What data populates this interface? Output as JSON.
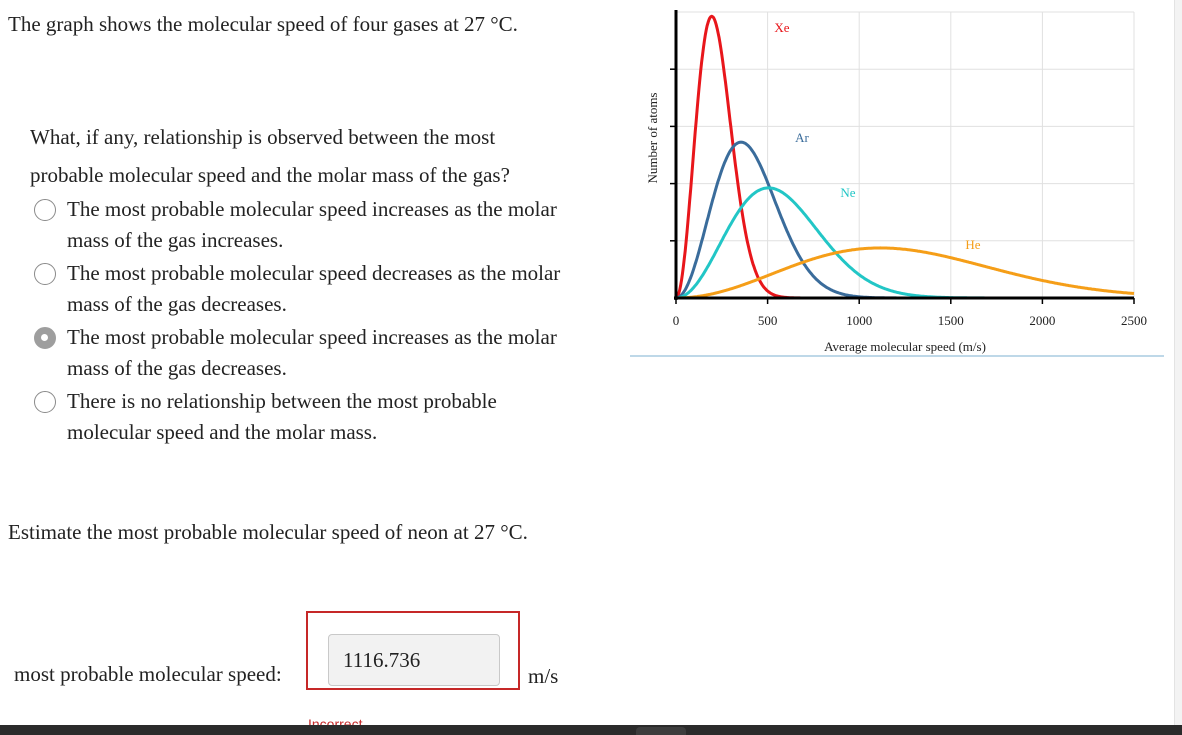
{
  "intro_text": "The graph shows the molecular speed of four gases at 27 °C.",
  "question_text": "What, if any, relationship is observed between the most probable molecular speed and the molar mass of the gas?",
  "options": [
    {
      "label": "The most probable molecular speed increases as the molar mass of the gas increases.",
      "selected": false
    },
    {
      "label": "The most probable molecular speed decreases as the molar mass of the gas decreases.",
      "selected": false
    },
    {
      "label": "The most probable molecular speed increases as the molar mass of the gas decreases.",
      "selected": true
    },
    {
      "label": "There is no relationship between the most probable molecular speed and the molar mass.",
      "selected": false
    }
  ],
  "estimate_prompt": "Estimate the most probable molecular speed of neon at 27 °C.",
  "answer": {
    "label": "most probable molecular speed:",
    "value": "1116.736",
    "unit": "m/s",
    "feedback": "Incorrect"
  },
  "colors": {
    "error": "#c62828",
    "Xe": "#e8161b",
    "Ar": "#3a6c9b",
    "Ne": "#22c6c6",
    "He": "#f59e18"
  },
  "chart_data": {
    "type": "line",
    "title": "",
    "xlabel": "Average molecular speed (m/s)",
    "ylabel": "Number of atoms",
    "xlim": [
      0,
      2500
    ],
    "ylim": [
      0,
      1
    ],
    "xticks": [
      0,
      500,
      1000,
      1500,
      2000,
      2500
    ],
    "x_tick_labels": [
      "0",
      "500",
      "1000",
      "1500",
      "2000",
      "2500"
    ],
    "grid": true,
    "series": [
      {
        "name": "Xe",
        "color": "#e8161b",
        "peak_speed": 195,
        "peak_height": 0.985
      },
      {
        "name": "Ar",
        "color": "#3a6c9b",
        "peak_speed": 355,
        "peak_height": 0.545
      },
      {
        "name": "Ne",
        "color": "#22c6c6",
        "peak_speed": 505,
        "peak_height": 0.385
      },
      {
        "name": "He",
        "color": "#f59e18",
        "peak_speed": 1115,
        "peak_height": 0.175
      }
    ]
  }
}
